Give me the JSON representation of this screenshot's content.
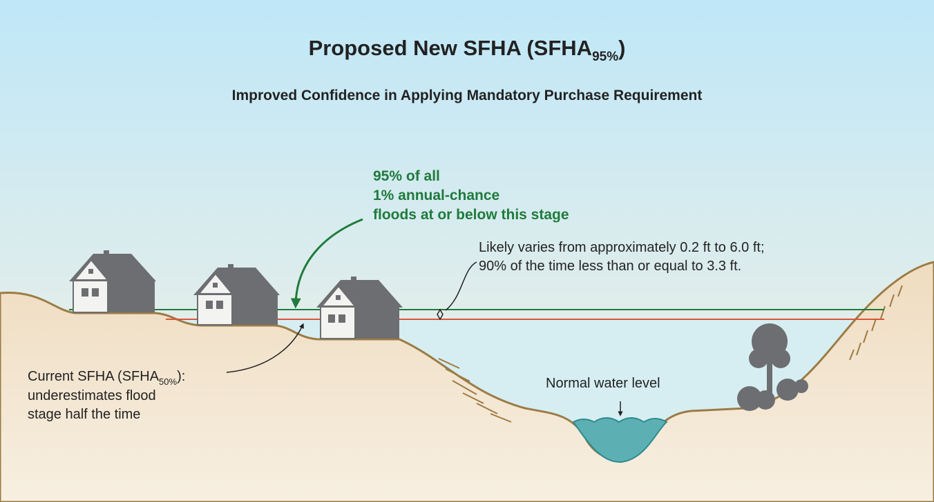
{
  "header": {
    "title": {
      "main": "Proposed New SFHA (SFHA",
      "subscript": "95%",
      "close": ")"
    },
    "subtitle": "Improved Confidence in Applying Mandatory Purchase Requirement"
  },
  "annotations": {
    "new_sfha": {
      "lines": [
        "95% of all",
        "1% annual-chance",
        "floods at or below this stage"
      ]
    },
    "range": {
      "lines": [
        "Likely varies from approximately 0.2 ft to 6.0 ft;",
        "90% of the time less than or equal to 3.3 ft."
      ]
    },
    "current_sfha": {
      "main": "Current SFHA (SFHA",
      "subscript": "50%",
      "close": "):",
      "lines": [
        "underestimates flood",
        "stage half the time"
      ]
    },
    "normal_water": "Normal water level"
  }
}
